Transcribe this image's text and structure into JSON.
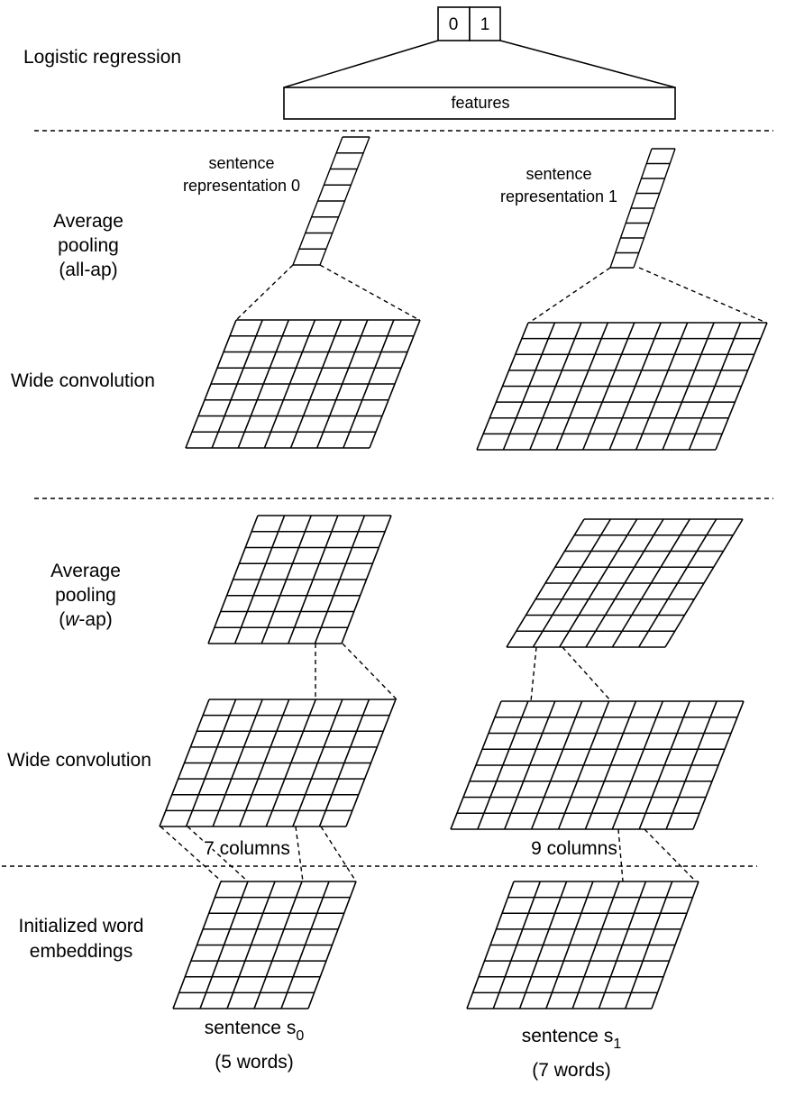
{
  "output": {
    "cells": [
      "0",
      "1"
    ]
  },
  "features_label": "features",
  "layers": {
    "logistic": "Logistic regression",
    "all_ap": [
      "Average",
      "pooling",
      "(all-ap)"
    ],
    "wide_conv": "Wide convolution",
    "w_ap": [
      "Average",
      "pooling"
    ],
    "w_ap_italic": "w",
    "w_ap_suffix": "-ap)",
    "w_ap_prefix": "(",
    "embeddings": [
      "Initialized word",
      "embeddings"
    ]
  },
  "sentence_reps": {
    "s0": [
      "sentence",
      "representation 0"
    ],
    "s1": [
      "sentence",
      "representation 1"
    ]
  },
  "columns": {
    "left": "7 columns",
    "right": "9 columns"
  },
  "sentences": {
    "s0": {
      "name": "sentence s",
      "sub": "0",
      "words": "(5 words)"
    },
    "s1": {
      "name": "sentence s",
      "sub": "1",
      "words": "(7 words)"
    }
  }
}
